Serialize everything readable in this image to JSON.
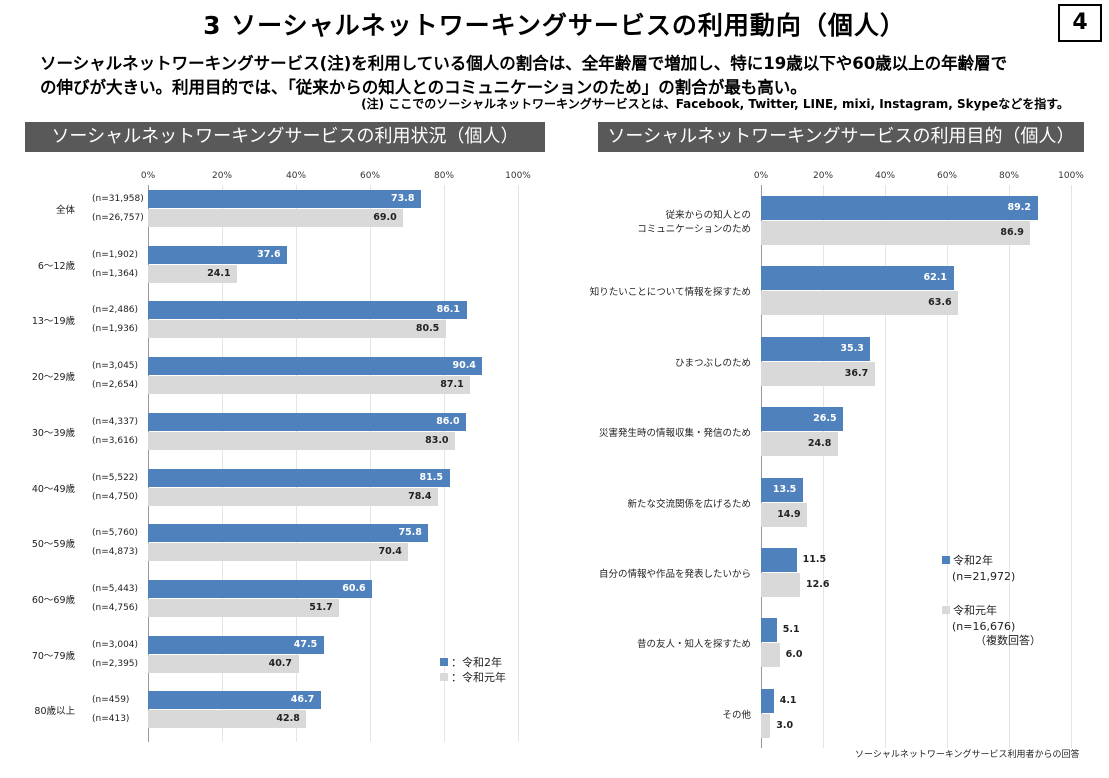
{
  "title": "3  ソーシャルネットワーキングサービスの利用動向（個人）",
  "page_number": "4",
  "summary": [
    "ソーシャルネットワーキングサービス(注)を利用している個人の割合は、全年齢層で増加し、特に19歳以下や60歳以上の年齢層で",
    "の伸びが大きい。利用目的では、「従来からの知人とのコミュニケーションのため」の割合が最も高い。"
  ],
  "note": "(注) ここでのソーシャルネットワーキングサービスとは、Facebook, Twitter, LINE, mixi, Instagram, Skypeなどを指す。",
  "colors": {
    "series1": "#4f81bd",
    "series2": "#d9d9d9",
    "header_bg": "#595959"
  },
  "chart_data": [
    {
      "type": "bar",
      "orientation": "horizontal",
      "title": "ソーシャルネットワーキングサービスの利用状況（個人）",
      "xlim": [
        0,
        100
      ],
      "ticks": [
        "0%",
        "20%",
        "40%",
        "60%",
        "80%",
        "100%"
      ],
      "grid": true,
      "legend": "bottom-right",
      "categories": [
        "全体",
        "6～12歳",
        "13～19歳",
        "20～29歳",
        "30～39歳",
        "40～49歳",
        "50～59歳",
        "60～69歳",
        "70～79歳",
        "80歳以上"
      ],
      "series": [
        {
          "name": "令和2年",
          "legend_label": "：令和2年",
          "values": [
            73.8,
            37.6,
            86.1,
            90.4,
            86.0,
            81.5,
            75.8,
            60.6,
            47.5,
            46.7
          ],
          "n": [
            "(n=31,958)",
            "(n=1,902)",
            "(n=2,486)",
            "(n=3,045)",
            "(n=4,337)",
            "(n=5,522)",
            "(n=5,760)",
            "(n=5,443)",
            "(n=3,004)",
            "(n=459)"
          ]
        },
        {
          "name": "令和元年",
          "legend_label": "：令和元年",
          "values": [
            69.0,
            24.1,
            80.5,
            87.1,
            83.0,
            78.4,
            70.4,
            51.7,
            40.7,
            42.8
          ],
          "n": [
            "(n=26,757)",
            "(n=1,364)",
            "(n=1,936)",
            "(n=2,654)",
            "(n=3,616)",
            "(n=4,750)",
            "(n=4,873)",
            "(n=4,756)",
            "(n=2,395)",
            "(n=413)"
          ]
        }
      ]
    },
    {
      "type": "bar",
      "orientation": "horizontal",
      "title": "ソーシャルネットワーキングサービスの利用目的（個人）",
      "xlim": [
        0,
        100
      ],
      "ticks": [
        "0%",
        "20%",
        "40%",
        "60%",
        "80%",
        "100%"
      ],
      "grid": true,
      "legend": "right",
      "categories": [
        [
          "従来からの知人との",
          "コミュニケーションのため"
        ],
        [
          "知りたいことについて情報を探すため"
        ],
        [
          "ひまつぶしのため"
        ],
        [
          "災害発生時の情報収集・発信のため"
        ],
        [
          "新たな交流関係を広げるため"
        ],
        [
          "自分の情報や作品を発表したいから"
        ],
        [
          "昔の友人・知人を探すため"
        ],
        [
          "その他"
        ]
      ],
      "series": [
        {
          "name": "令和2年",
          "n": "(n=21,972)",
          "values": [
            89.2,
            62.1,
            35.3,
            26.5,
            13.5,
            11.5,
            5.1,
            4.1
          ]
        },
        {
          "name": "令和元年",
          "n": "(n=16,676)",
          "values": [
            86.9,
            63.6,
            36.7,
            24.8,
            14.9,
            12.6,
            6.0,
            3.0
          ]
        }
      ],
      "legend_note": "（複数回答）",
      "footnote": "ソーシャルネットワーキングサービス利用者からの回答"
    }
  ]
}
